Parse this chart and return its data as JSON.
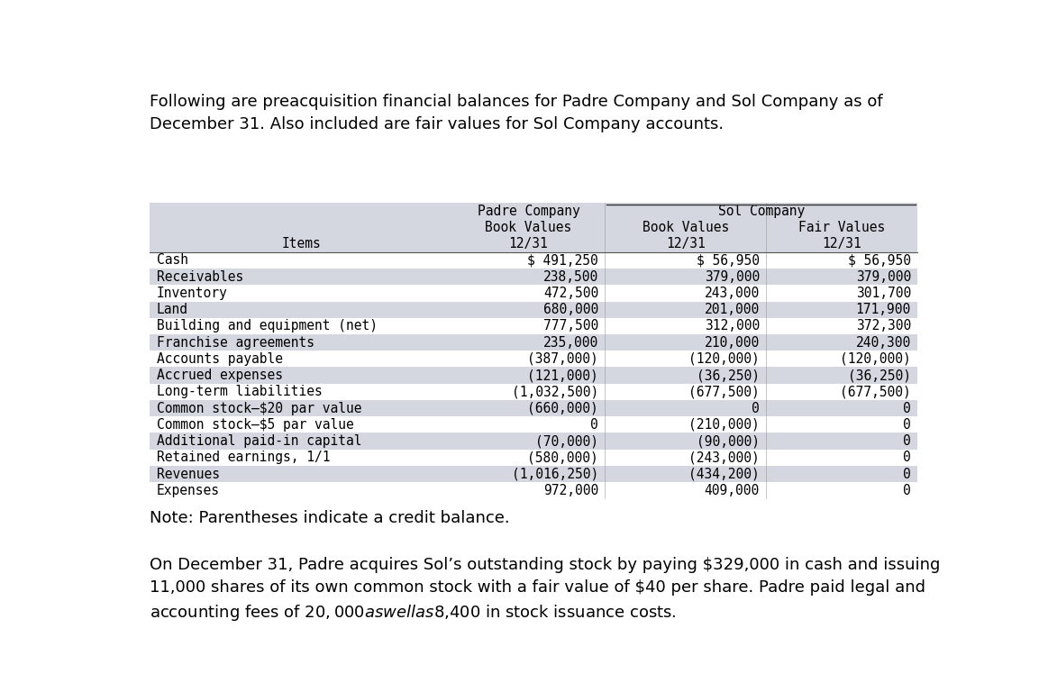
{
  "title_text": "Following are preacquisition financial balances for Padre Company and Sol Company as of\nDecember 31. Also included are fair values for Sol Company accounts.",
  "note_text": "Note: Parentheses indicate a credit balance.",
  "footer_text": "On December 31, Padre acquires Sol’s outstanding stock by paying $329,000 in cash and issuing\n11,000 shares of its own common stock with a fair value of $40 per share. Padre paid legal and\naccounting fees of $20,000 as well as $8,400 in stock issuance costs.",
  "header_row1_padre": "Padre Company",
  "header_row1_sol": "Sol Company",
  "header_row2": [
    "Book Values",
    "Book Values",
    "Fair Values"
  ],
  "header_row3_items": "Items",
  "header_row3_dates": [
    "12/31",
    "12/31",
    "12/31"
  ],
  "rows": [
    [
      "Cash",
      "$ 491,250",
      "$ 56,950",
      "$ 56,950"
    ],
    [
      "Receivables",
      "238,500",
      "379,000",
      "379,000"
    ],
    [
      "Inventory",
      "472,500",
      "243,000",
      "301,700"
    ],
    [
      "Land",
      "680,000",
      "201,000",
      "171,900"
    ],
    [
      "Building and equipment (net)",
      "777,500",
      "312,000",
      "372,300"
    ],
    [
      "Franchise agreements",
      "235,000",
      "210,000",
      "240,300"
    ],
    [
      "Accounts payable",
      "(387,000)",
      "(120,000)",
      "(120,000)"
    ],
    [
      "Accrued expenses",
      "(121,000)",
      "(36,250)",
      "(36,250)"
    ],
    [
      "Long-term liabilities",
      "(1,032,500)",
      "(677,500)",
      "(677,500)"
    ],
    [
      "Common stock–$20 par value",
      "(660,000)",
      "0",
      "0"
    ],
    [
      "Common stock–$5 par value",
      "0",
      "(210,000)",
      "0"
    ],
    [
      "Additional paid-in capital",
      "(70,000)",
      "(90,000)",
      "0"
    ],
    [
      "Retained earnings, 1/1",
      "(580,000)",
      "(243,000)",
      "0"
    ],
    [
      "Revenues",
      "(1,016,250)",
      "(434,200)",
      "0"
    ],
    [
      "Expenses",
      "972,000",
      "409,000",
      "0"
    ]
  ],
  "table_bg": "#d4d7e0",
  "row_alt_bg": "#e8eaef",
  "white_bg": "#ffffff",
  "text_color": "#000000",
  "font_size_table": 10.5,
  "font_size_body": 13.0
}
